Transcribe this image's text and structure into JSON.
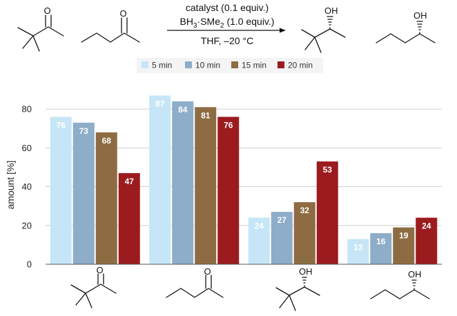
{
  "scheme": {
    "conditions": {
      "line1": "catalyst (0.1 equiv.)",
      "line2_main": "BH",
      "line2_sub1": "3",
      "line2_mid": "·SMe",
      "line2_sub2": "2",
      "line2_end": " (1.0 equiv.)",
      "line3": "THF, –20 °C"
    },
    "atoms": {
      "oxygen": "O",
      "hydroxyl": "OH"
    }
  },
  "chart_data": {
    "type": "bar",
    "ylabel": "amount [%]",
    "ylim": [
      0,
      90
    ],
    "yticks": [
      "0",
      "20",
      "40",
      "60",
      "80"
    ],
    "grid": true,
    "legend_position": "top",
    "categories": [
      "pinacolone",
      "2-pentanone",
      "3,3-dimethyl-2-butanol",
      "2-pentanol"
    ],
    "category_labels_shown_as": "chemical structures",
    "series": [
      {
        "name": "5 min",
        "color": "#c6e6f7",
        "values": [
          76,
          87,
          24,
          13
        ]
      },
      {
        "name": "10 min",
        "color": "#8dadc9",
        "values": [
          73,
          84,
          27,
          16
        ]
      },
      {
        "name": "15 min",
        "color": "#8e6c43",
        "values": [
          68,
          81,
          32,
          19
        ]
      },
      {
        "name": "20 min",
        "color": "#9b1b1f",
        "values": [
          47,
          76,
          53,
          24
        ]
      }
    ]
  }
}
